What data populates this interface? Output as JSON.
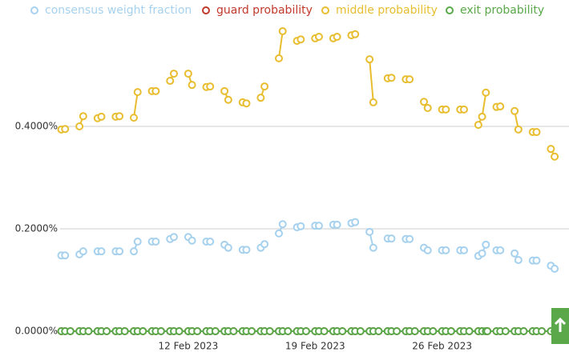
{
  "chart_data": {
    "type": "line",
    "x": [
      "2023-02-05T00:00",
      "2023-02-05T05:00",
      "2023-02-05T12:00",
      "2023-02-06T00:00",
      "2023-02-06T05:00",
      "2023-02-06T12:00",
      "2023-02-07T00:00",
      "2023-02-07T05:00",
      "2023-02-07T12:00",
      "2023-02-08T00:00",
      "2023-02-08T05:00",
      "2023-02-08T12:00",
      "2023-02-09T00:00",
      "2023-02-09T05:00",
      "2023-02-09T12:00",
      "2023-02-10T00:00",
      "2023-02-10T05:00",
      "2023-02-10T12:00",
      "2023-02-11T00:00",
      "2023-02-11T05:00",
      "2023-02-11T12:00",
      "2023-02-12T00:00",
      "2023-02-12T05:00",
      "2023-02-12T12:00",
      "2023-02-13T00:00",
      "2023-02-13T05:00",
      "2023-02-13T12:00",
      "2023-02-14T00:00",
      "2023-02-14T05:00",
      "2023-02-14T12:00",
      "2023-02-15T00:00",
      "2023-02-15T05:00",
      "2023-02-15T12:00",
      "2023-02-16T00:00",
      "2023-02-16T05:00",
      "2023-02-16T12:00",
      "2023-02-17T00:00",
      "2023-02-17T05:00",
      "2023-02-17T12:00",
      "2023-02-18T00:00",
      "2023-02-18T05:00",
      "2023-02-18T12:00",
      "2023-02-19T00:00",
      "2023-02-19T05:00",
      "2023-02-19T12:00",
      "2023-02-20T00:00",
      "2023-02-20T05:00",
      "2023-02-20T12:00",
      "2023-02-21T00:00",
      "2023-02-21T05:00",
      "2023-02-21T12:00",
      "2023-02-22T00:00",
      "2023-02-22T05:00",
      "2023-02-22T12:00",
      "2023-02-23T00:00",
      "2023-02-23T05:00",
      "2023-02-23T12:00",
      "2023-02-24T00:00",
      "2023-02-24T05:00",
      "2023-02-24T12:00",
      "2023-02-25T00:00",
      "2023-02-25T05:00",
      "2023-02-25T12:00",
      "2023-02-26T00:00",
      "2023-02-26T05:00",
      "2023-02-26T12:00",
      "2023-02-27T00:00",
      "2023-02-27T05:00",
      "2023-02-27T12:00",
      "2023-02-28T00:00",
      "2023-02-28T05:00",
      "2023-02-28T10:00",
      "2023-02-28T12:00",
      "2023-03-01T00:00",
      "2023-03-01T05:00",
      "2023-03-01T12:00",
      "2023-03-02T00:00",
      "2023-03-02T05:00",
      "2023-03-02T12:00",
      "2023-03-03T00:00",
      "2023-03-03T05:00",
      "2023-03-03T12:00",
      "2023-03-04T00:00",
      "2023-03-04T05:00"
    ],
    "xlim": [
      "2023-02-05T00:00",
      "2023-03-05T00:00"
    ],
    "xticks": [
      {
        "value": "2023-02-12T00:00",
        "label": "12 Feb 2023"
      },
      {
        "value": "2023-02-19T00:00",
        "label": "19 Feb 2023"
      },
      {
        "value": "2023-02-26T00:00",
        "label": "26 Feb 2023"
      }
    ],
    "ylim": [
      0,
      0.6
    ],
    "yticks": [
      {
        "value": 0,
        "label": "0.0000%"
      },
      {
        "value": 0.2,
        "label": "0.2000%"
      },
      {
        "value": 0.4,
        "label": "0.4000%"
      }
    ],
    "grid": true,
    "series": [
      {
        "name": "consensus weight fraction",
        "color": "#a6d1ee",
        "values": [
          0.148,
          0.148,
          null,
          0.15,
          0.156,
          null,
          0.156,
          0.156,
          null,
          0.156,
          0.156,
          null,
          0.156,
          0.175,
          null,
          0.175,
          0.175,
          null,
          0.18,
          0.184,
          null,
          0.184,
          0.177,
          null,
          0.175,
          0.175,
          null,
          0.169,
          0.163,
          null,
          0.159,
          0.159,
          null,
          0.163,
          0.17,
          null,
          0.191,
          0.209,
          null,
          0.203,
          0.205,
          null,
          0.206,
          0.206,
          null,
          0.208,
          0.208,
          null,
          0.211,
          0.213,
          null,
          0.194,
          0.163,
          null,
          0.181,
          0.181,
          null,
          0.18,
          0.18,
          null,
          0.163,
          0.158,
          null,
          0.158,
          0.158,
          null,
          0.158,
          0.158,
          null,
          0.147,
          0.152,
          0.169,
          null,
          0.158,
          0.158,
          null,
          0.152,
          0.139,
          null,
          0.138,
          0.138,
          null,
          0.128,
          0.122
        ]
      },
      {
        "name": "guard probability",
        "color": "#c0392b",
        "values": [
          0,
          0,
          0,
          0,
          0,
          0,
          0,
          0,
          0,
          0,
          0,
          0,
          0,
          0,
          0,
          0,
          0,
          0,
          0,
          0,
          0,
          0,
          0,
          0,
          0,
          0,
          0,
          0,
          0,
          0,
          0,
          0,
          0,
          0,
          0,
          0,
          0,
          0,
          0,
          0,
          0,
          0,
          0,
          0,
          0,
          0,
          0,
          0,
          0,
          0,
          0,
          0,
          0,
          0,
          0,
          0,
          0,
          0,
          0,
          0,
          0,
          0,
          0,
          0,
          0,
          0,
          0,
          0,
          0,
          0,
          0,
          0,
          0,
          0,
          0,
          0,
          0,
          0,
          0,
          0,
          0,
          0,
          0,
          0
        ]
      },
      {
        "name": "middle probability",
        "color": "#e8bd2f",
        "values": [
          0.394,
          0.395,
          null,
          0.4,
          0.42,
          null,
          0.416,
          0.419,
          null,
          0.419,
          0.42,
          null,
          0.417,
          0.467,
          null,
          0.469,
          0.469,
          null,
          0.489,
          0.503,
          null,
          0.503,
          0.481,
          null,
          0.477,
          0.478,
          null,
          0.469,
          0.452,
          null,
          0.447,
          0.445,
          null,
          0.456,
          0.478,
          null,
          0.533,
          0.586,
          null,
          0.567,
          0.57,
          null,
          0.572,
          0.575,
          null,
          0.572,
          0.575,
          null,
          0.578,
          0.58,
          null,
          0.531,
          0.447,
          null,
          0.494,
          0.495,
          null,
          0.492,
          0.492,
          null,
          0.448,
          0.436,
          null,
          0.433,
          0.433,
          null,
          0.433,
          0.433,
          null,
          0.403,
          0.419,
          0.466,
          null,
          0.438,
          0.439,
          null,
          0.43,
          0.394,
          null,
          0.389,
          0.389,
          null,
          0.356,
          0.341
        ]
      },
      {
        "name": "exit probability",
        "color": "#5aa84a",
        "values": [
          0,
          0,
          0,
          0,
          0,
          0,
          0,
          0,
          0,
          0,
          0,
          0,
          0,
          0,
          0,
          0,
          0,
          0,
          0,
          0,
          0,
          0,
          0,
          0,
          0,
          0,
          0,
          0,
          0,
          0,
          0,
          0,
          0,
          0,
          0,
          0,
          0,
          0,
          0,
          0,
          0,
          0,
          0,
          0,
          0,
          0,
          0,
          0,
          0,
          0,
          0,
          0,
          0,
          0,
          0,
          0,
          0,
          0,
          0,
          0,
          0,
          0,
          0,
          0,
          0,
          0,
          0,
          0,
          0,
          0,
          0,
          0,
          0,
          0,
          0,
          0,
          0,
          0,
          0,
          0,
          0,
          0,
          0,
          0
        ]
      }
    ]
  }
}
